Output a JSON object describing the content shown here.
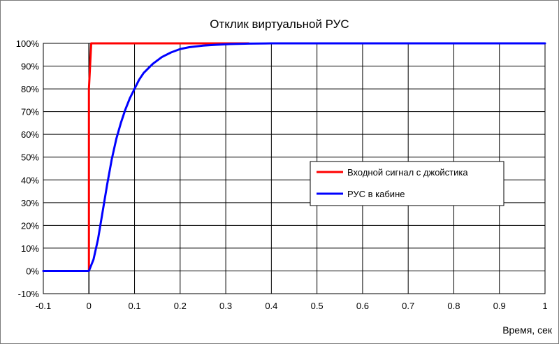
{
  "chart_data": {
    "type": "line",
    "title": "Отклик виртуальной РУС",
    "xlabel": "Время, сек",
    "ylabel": "",
    "xlim": [
      -0.1,
      1
    ],
    "ylim": [
      -10,
      100
    ],
    "x_ticks": [
      -0.1,
      0,
      0.1,
      0.2,
      0.3,
      0.4,
      0.5,
      0.6,
      0.7,
      0.8,
      0.9,
      1
    ],
    "x_tick_labels": [
      "-0.1",
      "0",
      "0.1",
      "0.2",
      "0.3",
      "0.4",
      "0.5",
      "0.6",
      "0.7",
      "0.8",
      "0.9",
      "1"
    ],
    "y_ticks": [
      -10,
      0,
      10,
      20,
      30,
      40,
      50,
      60,
      70,
      80,
      90,
      100
    ],
    "y_tick_labels": [
      "-10%",
      "0%",
      "10%",
      "20%",
      "30%",
      "40%",
      "50%",
      "60%",
      "70%",
      "80%",
      "90%",
      "100%"
    ],
    "grid": true,
    "legend_position": "center-right",
    "series": [
      {
        "name": "Входной сигнал с джойстика",
        "color": "#ff0000",
        "x": [
          -0.1,
          0.0,
          0.0,
          0.005,
          0.35
        ],
        "y": [
          0,
          0,
          80,
          100,
          100
        ]
      },
      {
        "name": "РУС в кабине",
        "color": "#0000ff",
        "x": [
          -0.1,
          0.0,
          0.01,
          0.02,
          0.03,
          0.04,
          0.05,
          0.06,
          0.07,
          0.08,
          0.09,
          0.1,
          0.11,
          0.12,
          0.13,
          0.14,
          0.15,
          0.16,
          0.18,
          0.2,
          0.22,
          0.25,
          0.28,
          0.31,
          0.35,
          0.4,
          0.5,
          0.6,
          0.7,
          0.8,
          0.9,
          1.0
        ],
        "y": [
          0,
          0,
          5,
          14,
          26,
          38,
          49,
          58,
          65,
          71,
          76,
          80,
          84,
          87,
          89,
          91,
          92.5,
          94,
          96,
          97.5,
          98.3,
          99,
          99.4,
          99.7,
          99.9,
          100,
          100,
          100,
          100,
          100,
          100,
          100
        ]
      }
    ]
  },
  "colors": {
    "frame_border": "#7a7a7a",
    "grid": "#000000",
    "axis_zero": "#000000",
    "legend_border": "#000000"
  }
}
